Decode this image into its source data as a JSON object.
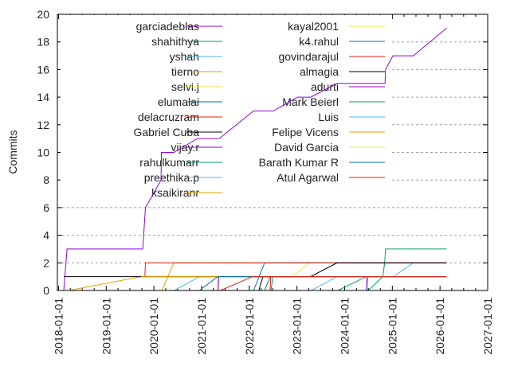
{
  "chart_data": {
    "type": "line",
    "title": "",
    "xlabel": "",
    "ylabel": "Commits",
    "xlim": [
      "2017-12-23",
      "2027-01-01"
    ],
    "ylim": [
      0,
      20
    ],
    "x_ticks": [
      "2018-01-01",
      "2019-01-01",
      "2020-01-01",
      "2021-01-01",
      "2022-01-01",
      "2023-01-01",
      "2024-01-01",
      "2025-01-01",
      "2026-01-01",
      "2027-01-01"
    ],
    "y_ticks": [
      "0",
      "2",
      "4",
      "6",
      "8",
      "10",
      "12",
      "14",
      "16",
      "18",
      "20"
    ],
    "grid": "horizontal dashed",
    "legend_placement": "top-left, two columns",
    "series": [
      {
        "name": "garciadeblas",
        "color": "#9400d3",
        "points": [
          [
            "2018-02-10",
            0
          ],
          [
            "2018-03-07",
            3
          ],
          [
            "2019-10-08",
            3
          ],
          [
            "2019-10-28",
            6
          ],
          [
            "2020-02-25",
            8
          ],
          [
            "2020-02-28",
            10
          ],
          [
            "2020-06-03",
            10
          ],
          [
            "2020-12-01",
            11
          ],
          [
            "2021-05-16",
            11
          ],
          [
            "2022-02-03",
            13
          ],
          [
            "2022-07-05",
            13
          ],
          [
            "2023-01-05",
            14
          ],
          [
            "2023-04-16",
            14
          ],
          [
            "2023-11-06",
            15
          ],
          [
            "2024-11-06",
            15
          ],
          [
            "2024-11-10",
            16
          ],
          [
            "2025-01-05",
            17
          ],
          [
            "2025-06-10",
            17
          ],
          [
            "2026-02-21",
            19
          ]
        ]
      },
      {
        "name": "shahithya",
        "color": "#009e73",
        "points": [
          [
            "2024-07-01",
            0
          ],
          [
            "2024-10-20",
            1
          ],
          [
            "2024-11-03",
            2
          ],
          [
            "2024-11-10",
            3
          ],
          [
            "2026-02-21",
            3
          ]
        ]
      },
      {
        "name": "yshah",
        "color": "#56b4e9",
        "points": [
          [
            "2020-06-05",
            0
          ],
          [
            "2020-12-15",
            1
          ],
          [
            "2026-02-21",
            1
          ]
        ]
      },
      {
        "name": "tierno",
        "color": "#e69f00",
        "points": [
          [
            "2020-03-02",
            0
          ],
          [
            "2020-06-03",
            2
          ],
          [
            "2026-02-21",
            2
          ]
        ]
      },
      {
        "name": "selvi.j",
        "color": "#f0e442",
        "points": [
          [
            "2021-04-28",
            0
          ],
          [
            "2021-05-02",
            1
          ],
          [
            "2026-02-21",
            1
          ]
        ]
      },
      {
        "name": "elumalai",
        "color": "#0072b2",
        "points": [
          [
            "2022-04-28",
            0
          ],
          [
            "2022-06-10",
            1
          ],
          [
            "2026-02-21",
            1
          ]
        ]
      },
      {
        "name": "delacruzram",
        "color": "#e51e10",
        "points": [
          [
            "2022-06-10",
            0
          ],
          [
            "2022-06-14",
            1
          ],
          [
            "2026-02-21",
            1
          ]
        ]
      },
      {
        "name": "Gabriel Cuba",
        "color": "#000000",
        "points": [
          [
            "2022-03-15",
            0
          ],
          [
            "2022-04-15",
            1
          ],
          [
            "2026-02-21",
            1
          ]
        ]
      },
      {
        "name": "vijay.r",
        "color": "#9400d3",
        "points": [
          [
            "2021-05-08",
            0
          ],
          [
            "2021-05-12",
            1
          ],
          [
            "2026-02-21",
            1
          ]
        ]
      },
      {
        "name": "rahulkumarr",
        "color": "#009e73",
        "points": [
          [
            "2022-06-16",
            0
          ],
          [
            "2022-07-01",
            1
          ],
          [
            "2026-02-21",
            1
          ]
        ]
      },
      {
        "name": "preethika.p",
        "color": "#56b4e9",
        "points": [
          [
            "2024-06-20",
            0
          ],
          [
            "2024-06-28",
            1
          ],
          [
            "2025-01-08",
            1
          ],
          [
            "2025-06-10",
            2
          ],
          [
            "2026-02-21",
            2
          ]
        ]
      },
      {
        "name": "ksaikiranr",
        "color": "#e69f00",
        "points": [
          [
            "2018-03-20",
            0
          ],
          [
            "2019-09-25",
            1
          ],
          [
            "2026-02-21",
            1
          ]
        ]
      },
      {
        "name": "kayal2001",
        "color": "#f0e442",
        "points": [
          [
            "2022-11-25",
            1
          ],
          [
            "2023-04-05",
            2
          ],
          [
            "2026-02-21",
            2
          ]
        ]
      },
      {
        "name": "k4.rahul",
        "color": "#0072b2",
        "points": [
          [
            "2022-02-03",
            0
          ],
          [
            "2022-04-28",
            2
          ],
          [
            "2026-02-21",
            2
          ]
        ]
      },
      {
        "name": "govindarajul",
        "color": "#e51e10",
        "points": [
          [
            "2019-10-24",
            1
          ],
          [
            "2019-10-28",
            2
          ],
          [
            "2026-02-21",
            2
          ]
        ]
      },
      {
        "name": "almagia",
        "color": "#000000",
        "points": [
          [
            "2018-02-10",
            1
          ],
          [
            "2023-04-15",
            1
          ],
          [
            "2023-11-05",
            2
          ],
          [
            "2026-02-21",
            2
          ]
        ]
      },
      {
        "name": "adurti",
        "color": "#9400d3",
        "points": [
          [
            "2024-06-17",
            0
          ],
          [
            "2024-06-20",
            1
          ],
          [
            "2026-02-21",
            1
          ]
        ]
      },
      {
        "name": "Mark Beierl",
        "color": "#009e73",
        "points": [
          [
            "2023-11-10",
            0
          ],
          [
            "2024-06-15",
            1
          ],
          [
            "2026-02-21",
            1
          ]
        ]
      },
      {
        "name": "Luis",
        "color": "#56b4e9",
        "points": [
          [
            "2023-04-20",
            0
          ],
          [
            "2023-11-05",
            1
          ],
          [
            "2026-02-21",
            1
          ]
        ]
      },
      {
        "name": "Felipe Vicens",
        "color": "#e69f00",
        "points": [
          [
            "2019-09-25",
            1
          ],
          [
            "2026-02-21",
            1
          ]
        ]
      },
      {
        "name": "David Garcia",
        "color": "#f0e442",
        "points": [
          [
            "2022-11-20",
            1
          ],
          [
            "2026-02-21",
            1
          ]
        ]
      },
      {
        "name": "Barath Kumar R",
        "color": "#0072b2",
        "points": [
          [
            "2020-12-15",
            0
          ],
          [
            "2021-05-05",
            1
          ],
          [
            "2026-02-21",
            1
          ]
        ]
      },
      {
        "name": "Atul Agarwal",
        "color": "#e51e10",
        "points": [
          [
            "2021-05-25",
            0
          ],
          [
            "2022-01-25",
            1
          ],
          [
            "2026-02-21",
            1
          ]
        ]
      }
    ]
  }
}
